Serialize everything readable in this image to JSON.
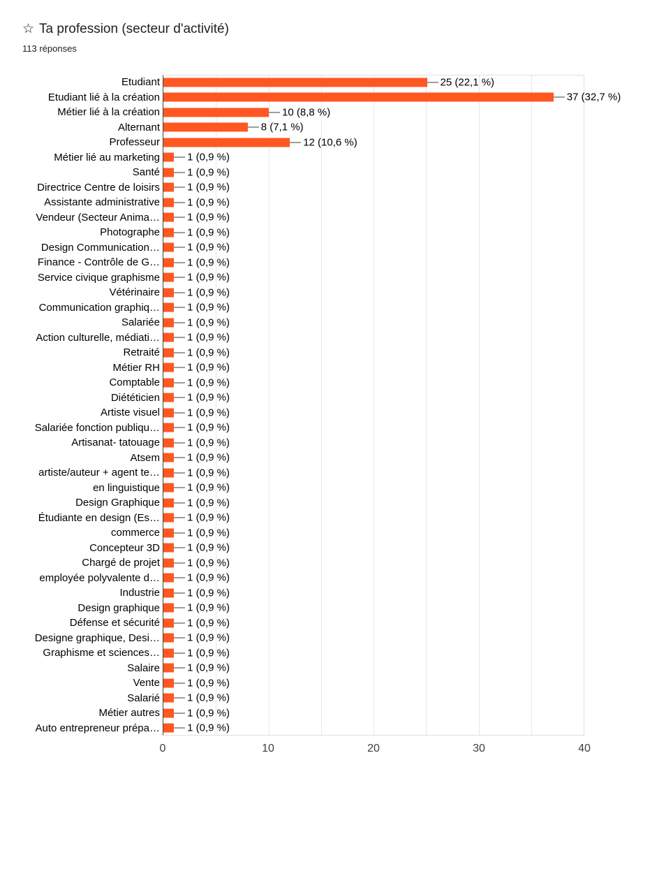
{
  "header": {
    "icon": "☆",
    "title": "Ta profession (secteur d'activité)",
    "subtitle": "113 réponses"
  },
  "chart_data": {
    "type": "bar",
    "orientation": "horizontal",
    "title": "Ta profession (secteur d'activité)",
    "subtitle": "113 réponses",
    "xlabel": "",
    "ylabel": "",
    "xlim": [
      0,
      40
    ],
    "x_ticks": [
      0,
      10,
      20,
      30,
      40
    ],
    "grid_values": [
      5,
      10,
      15,
      20,
      25,
      30,
      35
    ],
    "grid": true,
    "legend": "none",
    "bar_color": "#ff5722",
    "connector_color": "#9e9e9e",
    "categories": [
      "Etudiant",
      "Etudiant lié à la création",
      "Métier lié à la création",
      "Alternant",
      "Professeur",
      "Métier lié au marketing",
      "Santé",
      "Directrice Centre de loisirs",
      "Assistante administrative",
      "Vendeur (Secteur Anima…",
      "Photographe",
      "Design Communication…",
      "Finance - Contrôle de G…",
      "Service civique graphisme",
      "Vétérinaire",
      "Communication graphiq…",
      "Salariée",
      "Action culturelle, médiati…",
      "Retraité",
      "Métier RH",
      "Comptable",
      "Diététicien",
      "Artiste visuel",
      "Salariée fonction publiqu…",
      "Artisanat- tatouage",
      "Atsem",
      "artiste/auteur + agent te…",
      "en linguistique",
      "Design Graphique",
      "Étudiante en design (Es…",
      "commerce",
      "Concepteur 3D",
      "Chargé de projet",
      "employée polyvalente d…",
      "Industrie",
      "Design graphique",
      "Défense et sécurité",
      "Designe graphique, Desi…",
      "Graphisme et sciences…",
      "Salaire",
      "Vente",
      "Salarié",
      "Métier autres",
      "Auto entrepreneur prépa…"
    ],
    "values": [
      25,
      37,
      10,
      8,
      12,
      1,
      1,
      1,
      1,
      1,
      1,
      1,
      1,
      1,
      1,
      1,
      1,
      1,
      1,
      1,
      1,
      1,
      1,
      1,
      1,
      1,
      1,
      1,
      1,
      1,
      1,
      1,
      1,
      1,
      1,
      1,
      1,
      1,
      1,
      1,
      1,
      1,
      1,
      1
    ],
    "annotations": [
      "25 (22,1 %)",
      "37 (32,7 %)",
      "10 (8,8 %)",
      "8 (7,1 %)",
      "12 (10,6 %)",
      "1 (0,9 %)",
      "1 (0,9 %)",
      "1 (0,9 %)",
      "1 (0,9 %)",
      "1 (0,9 %)",
      "1 (0,9 %)",
      "1 (0,9 %)",
      "1 (0,9 %)",
      "1 (0,9 %)",
      "1 (0,9 %)",
      "1 (0,9 %)",
      "1 (0,9 %)",
      "1 (0,9 %)",
      "1 (0,9 %)",
      "1 (0,9 %)",
      "1 (0,9 %)",
      "1 (0,9 %)",
      "1 (0,9 %)",
      "1 (0,9 %)",
      "1 (0,9 %)",
      "1 (0,9 %)",
      "1 (0,9 %)",
      "1 (0,9 %)",
      "1 (0,9 %)",
      "1 (0,9 %)",
      "1 (0,9 %)",
      "1 (0,9 %)",
      "1 (0,9 %)",
      "1 (0,9 %)",
      "1 (0,9 %)",
      "1 (0,9 %)",
      "1 (0,9 %)",
      "1 (0,9 %)",
      "1 (0,9 %)",
      "1 (0,9 %)",
      "1 (0,9 %)",
      "1 (0,9 %)",
      "1 (0,9 %)",
      "1 (0,9 %)"
    ]
  }
}
